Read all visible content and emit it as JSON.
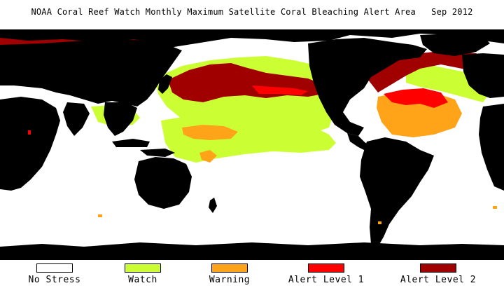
{
  "title": "NOAA Coral Reef Watch Monthly Maximum Satellite Coral Bleaching Alert Area   Sep 2012",
  "colors": {
    "land": "#000000",
    "no_stress": "#ffffff",
    "watch": "#ccff33",
    "warning": "#ffa319",
    "alert1": "#ff0000",
    "alert2": "#a00000"
  },
  "legend": [
    {
      "label": "No Stress",
      "color": "#ffffff"
    },
    {
      "label": "Watch",
      "color": "#ccff33"
    },
    {
      "label": "Warning",
      "color": "#ffa319"
    },
    {
      "label": "Alert Level 1",
      "color": "#ff0000"
    },
    {
      "label": "Alert Level 2",
      "color": "#a00000"
    }
  ]
}
